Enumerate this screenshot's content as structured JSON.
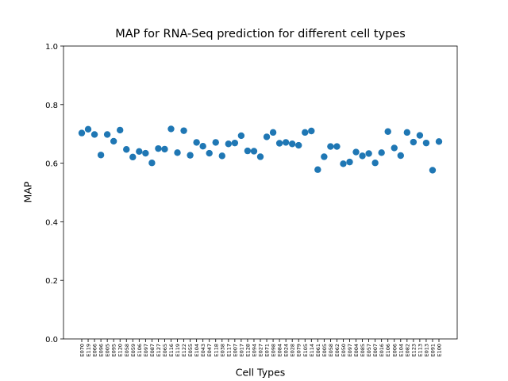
{
  "chart_data": {
    "type": "scatter",
    "title": "MAP for RNA-Seq prediction for different cell types",
    "x_label": "Cell Types",
    "y_label": "MAP",
    "color": "#1f77b4",
    "categories": [
      "E070",
      "E119",
      "E066",
      "E096",
      "E005",
      "E095",
      "E120",
      "E058",
      "E059",
      "E106",
      "E097",
      "E087",
      "E127",
      "E065",
      "E116",
      "E119",
      "E122",
      "E055",
      "E104",
      "E043",
      "E047",
      "E118",
      "E038",
      "E117",
      "E007",
      "E017",
      "E128",
      "E094",
      "E027",
      "E071",
      "E098",
      "E084",
      "E024",
      "E028",
      "E079",
      "E105",
      "E114",
      "E061",
      "E005",
      "E058",
      "E062",
      "E050",
      "E097",
      "E004",
      "E085",
      "E057",
      "E007",
      "E016",
      "E106",
      "E006",
      "E104",
      "E082",
      "E123",
      "E113",
      "E013",
      "E091",
      "E100"
    ],
    "values": [
      0.703,
      0.716,
      0.698,
      0.628,
      0.698,
      0.675,
      0.713,
      0.647,
      0.621,
      0.64,
      0.634,
      0.601,
      0.65,
      0.648,
      0.717,
      0.636,
      0.711,
      0.627,
      0.671,
      0.658,
      0.634,
      0.671,
      0.625,
      0.666,
      0.669,
      0.694,
      0.642,
      0.641,
      0.622,
      0.69,
      0.705,
      0.668,
      0.671,
      0.666,
      0.661,
      0.705,
      0.71,
      0.578,
      0.622,
      0.657,
      0.657,
      0.598,
      0.604,
      0.638,
      0.625,
      0.633,
      0.601,
      0.636,
      0.708,
      0.652,
      0.626,
      0.705,
      0.672,
      0.695,
      0.669,
      0.576,
      0.674
    ],
    "ylim": [
      0,
      1
    ],
    "yticks": [
      {
        "value": 0,
        "label": "0.0"
      },
      {
        "value": 0.2,
        "label": "0.2"
      },
      {
        "value": 0.4,
        "label": "0.4"
      },
      {
        "value": 0.6,
        "label": "0.6"
      },
      {
        "value": 0.8,
        "label": "0.8"
      },
      {
        "value": 1,
        "label": "1.0"
      }
    ]
  }
}
